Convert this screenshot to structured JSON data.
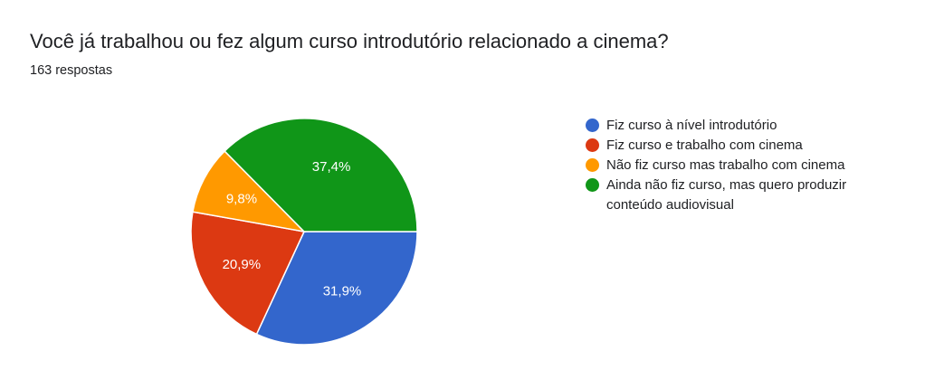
{
  "header": {
    "title": "Você já trabalhou ou fez algum curso introdutório relacionado a cinema?",
    "responses": "163 respostas"
  },
  "chart_data": {
    "type": "pie",
    "slices": [
      {
        "label": "Fiz curso à nível introdutório",
        "value": 31.9,
        "display": "31,9%",
        "color": "#3366cc"
      },
      {
        "label": "Fiz curso e trabalho com cinema",
        "value": 20.9,
        "display": "20,9%",
        "color": "#dc3912"
      },
      {
        "label": "Não fiz curso mas trabalho com cinema",
        "value": 9.8,
        "display": "9,8%",
        "color": "#ff9900"
      },
      {
        "label": "Ainda não fiz curso, mas quero produzir conteúdo audiovisual",
        "value": 37.4,
        "display": "37,4%",
        "color": "#109618"
      }
    ],
    "legend_position": "right"
  }
}
